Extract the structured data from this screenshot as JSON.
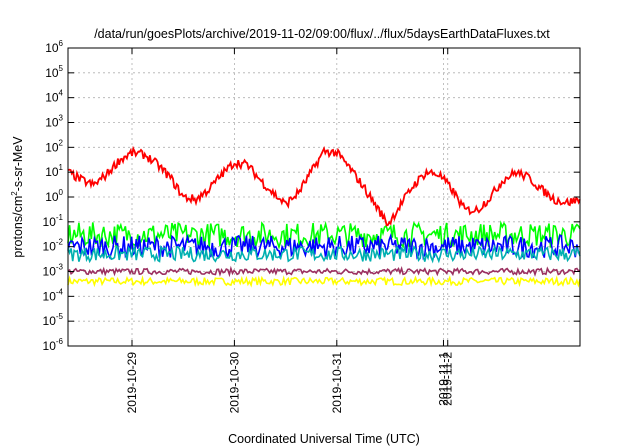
{
  "chart_data": {
    "type": "line",
    "title": "/data/run/goesPlots/archive/2019-11-02/09:00/flux/../flux/5daysEarthDataFluxes.txt",
    "xlabel": "Coordinated Universal Time (UTC)",
    "ylabel_parts": {
      "base": "protons/cm",
      "exp": "2",
      "rest": "-s-sr-MeV"
    },
    "y_scale": "log",
    "ylim": [
      1e-06,
      1000000.0
    ],
    "y_ticks": [
      {
        "base": "10",
        "exp": "-6",
        "value": 1e-06
      },
      {
        "base": "10",
        "exp": "-5",
        "value": 1e-05
      },
      {
        "base": "10",
        "exp": "-4",
        "value": 0.0001
      },
      {
        "base": "10",
        "exp": "-3",
        "value": 0.001
      },
      {
        "base": "10",
        "exp": "-2",
        "value": 0.01
      },
      {
        "base": "10",
        "exp": "-1",
        "value": 0.1
      },
      {
        "base": "10",
        "exp": "0",
        "value": 1
      },
      {
        "base": "10",
        "exp": "1",
        "value": 10
      },
      {
        "base": "10",
        "exp": "2",
        "value": 100
      },
      {
        "base": "10",
        "exp": "3",
        "value": 1000
      },
      {
        "base": "10",
        "exp": "4",
        "value": 10000
      },
      {
        "base": "10",
        "exp": "5",
        "value": 100000
      },
      {
        "base": "10",
        "exp": "6",
        "value": 1000000
      }
    ],
    "x_ticks": [
      "2019-10-29",
      "2019-10-30",
      "2019-10-31",
      "2019-11-1",
      "2019-11-2"
    ],
    "xlim": [
      "2019-10-28T09:00",
      "2019-11-02T09:00"
    ],
    "grid": true,
    "series": [
      {
        "color": "#ff0000",
        "kind": "main",
        "x": [
          "2019-10-28T09:00",
          "2019-10-28T12:00",
          "2019-10-28T15:00",
          "2019-10-28T18:00",
          "2019-10-28T21:00",
          "2019-10-29T00:00",
          "2019-10-29T03:00",
          "2019-10-29T06:00",
          "2019-10-29T09:00",
          "2019-10-29T12:00",
          "2019-10-29T15:00",
          "2019-10-29T18:00",
          "2019-10-29T21:00",
          "2019-10-30T00:00",
          "2019-10-30T03:00",
          "2019-10-30T06:00",
          "2019-10-30T09:00",
          "2019-10-30T12:00",
          "2019-10-30T15:00",
          "2019-10-30T18:00",
          "2019-10-30T21:00",
          "2019-10-31T00:00",
          "2019-10-31T03:00",
          "2019-10-31T06:00",
          "2019-10-31T09:00",
          "2019-10-31T12:00",
          "2019-10-31T15:00",
          "2019-10-31T18:00",
          "2019-10-31T21:00",
          "2019-11-01T00:00",
          "2019-11-01T03:00",
          "2019-11-01T06:00",
          "2019-11-01T09:00",
          "2019-11-01T12:00",
          "2019-11-01T15:00",
          "2019-11-01T18:00",
          "2019-11-01T21:00",
          "2019-11-02T00:00",
          "2019-11-02T03:00",
          "2019-11-02T06:00",
          "2019-11-02T09:00"
        ],
        "y": [
          10,
          5,
          3,
          8,
          30,
          60,
          50,
          20,
          6,
          1,
          0.8,
          2,
          8,
          25,
          20,
          5,
          1.5,
          0.5,
          1.5,
          10,
          70,
          60,
          15,
          3,
          0.5,
          0.08,
          0.5,
          3,
          10,
          8,
          2,
          0.3,
          0.3,
          1,
          5,
          10,
          6,
          2,
          0.8,
          0.6,
          0.8
        ]
      },
      {
        "color": "#00ff00",
        "kind": "band",
        "mean": 0.03,
        "spread": 0.5
      },
      {
        "color": "#0000ff",
        "kind": "band",
        "mean": 0.01,
        "spread": 0.45
      },
      {
        "color": "#00b0b0",
        "kind": "band",
        "mean": 0.005,
        "spread": 0.3
      },
      {
        "color": "#9b3060",
        "kind": "band",
        "mean": 0.001,
        "spread": 0.12
      },
      {
        "color": "#ffff00",
        "kind": "band",
        "mean": 0.0004,
        "spread": 0.15
      }
    ]
  }
}
